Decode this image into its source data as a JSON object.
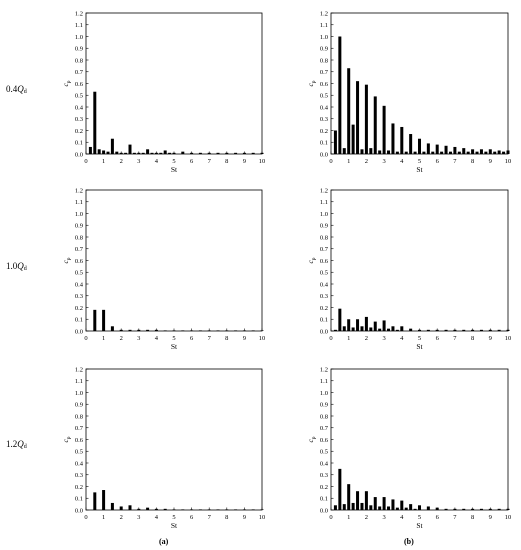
{
  "figure": {
    "rows": [
      {
        "prefix": "0.4",
        "q": "Q",
        "sub": "d"
      },
      {
        "prefix": "1.0",
        "q": "Q",
        "sub": "d"
      },
      {
        "prefix": "1.2",
        "q": "Q",
        "sub": "d"
      }
    ],
    "columns": [
      "(a)",
      "(b)"
    ]
  },
  "chart_data": [
    {
      "type": "bar",
      "panel": "0.4Qd (a)",
      "xlabel": "St",
      "ylabel": "c_p",
      "xlim": [
        0,
        10
      ],
      "ylim": [
        0,
        1.2
      ],
      "xticks": [
        "0",
        "1",
        "2",
        "3",
        "4",
        "5",
        "6",
        "7",
        "8",
        "9",
        "10"
      ],
      "yticks": [
        "0.0",
        "0.1",
        "0.2",
        "0.3",
        "0.4",
        "0.5",
        "0.6",
        "0.7",
        "0.8",
        "0.9",
        "1.0",
        "1.1",
        "1.2"
      ],
      "x": [
        0.25,
        0.5,
        0.75,
        1.0,
        1.25,
        1.5,
        1.75,
        2.0,
        2.25,
        2.5,
        2.75,
        3.0,
        3.25,
        3.5,
        3.75,
        4.0,
        4.25,
        4.5,
        4.75,
        5.0,
        5.5,
        6.0,
        6.5,
        7.0,
        7.5,
        8.0,
        8.5,
        9.0,
        9.5,
        10.0
      ],
      "values": [
        0.06,
        0.53,
        0.04,
        0.03,
        0.02,
        0.13,
        0.02,
        0.01,
        0.01,
        0.08,
        0.01,
        0.01,
        0.01,
        0.04,
        0.01,
        0.01,
        0.01,
        0.03,
        0.01,
        0.01,
        0.02,
        0.01,
        0.01,
        0.01,
        0.01,
        0.01,
        0.01,
        0.01,
        0.01,
        0.01
      ]
    },
    {
      "type": "bar",
      "panel": "0.4Qd (b)",
      "xlabel": "St",
      "ylabel": "c_p",
      "xlim": [
        0,
        10
      ],
      "ylim": [
        0,
        1.2
      ],
      "xticks": [
        "0",
        "1",
        "2",
        "3",
        "4",
        "5",
        "6",
        "7",
        "8",
        "9",
        "10"
      ],
      "yticks": [
        "0.0",
        "0.1",
        "0.2",
        "0.3",
        "0.4",
        "0.5",
        "0.6",
        "0.7",
        "0.8",
        "0.9",
        "1.0",
        "1.1",
        "1.2"
      ],
      "x": [
        0.25,
        0.5,
        0.75,
        1.0,
        1.25,
        1.5,
        1.75,
        2.0,
        2.25,
        2.5,
        2.75,
        3.0,
        3.25,
        3.5,
        3.75,
        4.0,
        4.25,
        4.5,
        4.75,
        5.0,
        5.25,
        5.5,
        5.75,
        6.0,
        6.25,
        6.5,
        6.75,
        7.0,
        7.25,
        7.5,
        7.75,
        8.0,
        8.25,
        8.5,
        8.75,
        9.0,
        9.25,
        9.5,
        9.75,
        10.0
      ],
      "values": [
        0.2,
        1.0,
        0.05,
        0.73,
        0.25,
        0.62,
        0.04,
        0.59,
        0.05,
        0.49,
        0.03,
        0.41,
        0.03,
        0.26,
        0.02,
        0.23,
        0.02,
        0.17,
        0.02,
        0.13,
        0.02,
        0.09,
        0.02,
        0.08,
        0.02,
        0.07,
        0.02,
        0.06,
        0.02,
        0.05,
        0.02,
        0.04,
        0.02,
        0.04,
        0.02,
        0.04,
        0.02,
        0.03,
        0.02,
        0.03
      ]
    },
    {
      "type": "bar",
      "panel": "1.0Qd (a)",
      "xlabel": "St",
      "ylabel": "c_p",
      "xlim": [
        0,
        10
      ],
      "ylim": [
        0,
        1.2
      ],
      "xticks": [
        "0",
        "1",
        "2",
        "3",
        "4",
        "5",
        "6",
        "7",
        "8",
        "9",
        "10"
      ],
      "yticks": [
        "0.0",
        "0.1",
        "0.2",
        "0.3",
        "0.4",
        "0.5",
        "0.6",
        "0.7",
        "0.8",
        "0.9",
        "1.0",
        "1.1",
        "1.2"
      ],
      "x": [
        0.5,
        1.0,
        1.5,
        2.0,
        2.5,
        3.0,
        3.5,
        4.0,
        4.5,
        5.0,
        5.5,
        6.0,
        6.5,
        7.0,
        7.5,
        8.0,
        8.5,
        9.0,
        9.5,
        10.0
      ],
      "values": [
        0.18,
        0.18,
        0.04,
        0.01,
        0.01,
        0.01,
        0.01,
        0.01,
        0.005,
        0.005,
        0.005,
        0.005,
        0.005,
        0.005,
        0.005,
        0.005,
        0.005,
        0.005,
        0.005,
        0.005
      ]
    },
    {
      "type": "bar",
      "panel": "1.0Qd (b)",
      "xlabel": "St",
      "ylabel": "c_p",
      "xlim": [
        0,
        10
      ],
      "ylim": [
        0,
        1.2
      ],
      "xticks": [
        "0",
        "1",
        "2",
        "3",
        "4",
        "5",
        "6",
        "7",
        "8",
        "9",
        "10"
      ],
      "yticks": [
        "0.0",
        "0.1",
        "0.2",
        "0.3",
        "0.4",
        "0.5",
        "0.6",
        "0.7",
        "0.8",
        "0.9",
        "1.0",
        "1.1",
        "1.2"
      ],
      "x": [
        0.25,
        0.5,
        0.75,
        1.0,
        1.25,
        1.5,
        1.75,
        2.0,
        2.25,
        2.5,
        2.75,
        3.0,
        3.25,
        3.5,
        3.75,
        4.0,
        4.5,
        5.0,
        5.5,
        6.0,
        6.5,
        7.0,
        7.5,
        8.0,
        8.5,
        9.0,
        9.5,
        10.0
      ],
      "values": [
        0.01,
        0.19,
        0.04,
        0.1,
        0.03,
        0.1,
        0.04,
        0.12,
        0.03,
        0.08,
        0.02,
        0.09,
        0.02,
        0.04,
        0.01,
        0.04,
        0.02,
        0.01,
        0.01,
        0.01,
        0.01,
        0.01,
        0.01,
        0.01,
        0.01,
        0.01,
        0.01,
        0.01
      ]
    },
    {
      "type": "bar",
      "panel": "1.2Qd (a)",
      "xlabel": "St",
      "ylabel": "c_p",
      "xlim": [
        0,
        10
      ],
      "ylim": [
        0,
        1.2
      ],
      "xticks": [
        "0",
        "1",
        "2",
        "3",
        "4",
        "5",
        "6",
        "7",
        "8",
        "9",
        "10"
      ],
      "yticks": [
        "0.0",
        "0.1",
        "0.2",
        "0.3",
        "0.4",
        "0.5",
        "0.6",
        "0.7",
        "0.8",
        "0.9",
        "1.0",
        "1.1",
        "1.2"
      ],
      "x": [
        0.5,
        1.0,
        1.5,
        2.0,
        2.5,
        3.0,
        3.5,
        4.0,
        4.5,
        5.0,
        5.5,
        6.0,
        6.5,
        7.0,
        7.5,
        8.0,
        8.5,
        9.0,
        9.5,
        10.0
      ],
      "values": [
        0.15,
        0.17,
        0.06,
        0.03,
        0.04,
        0.01,
        0.02,
        0.01,
        0.01,
        0.005,
        0.005,
        0.005,
        0.005,
        0.005,
        0.005,
        0.005,
        0.005,
        0.005,
        0.005,
        0.005
      ]
    },
    {
      "type": "bar",
      "panel": "1.2Qd (b)",
      "xlabel": "St",
      "ylabel": "c_p",
      "xlim": [
        0,
        10
      ],
      "ylim": [
        0,
        1.2
      ],
      "xticks": [
        "0",
        "1",
        "2",
        "3",
        "4",
        "5",
        "6",
        "7",
        "8",
        "9",
        "10"
      ],
      "yticks": [
        "0.0",
        "0.1",
        "0.2",
        "0.3",
        "0.4",
        "0.5",
        "0.6",
        "0.7",
        "0.8",
        "0.9",
        "1.0",
        "1.1",
        "1.2"
      ],
      "x": [
        0.25,
        0.5,
        0.75,
        1.0,
        1.25,
        1.5,
        1.75,
        2.0,
        2.25,
        2.5,
        2.75,
        3.0,
        3.25,
        3.5,
        3.75,
        4.0,
        4.25,
        4.5,
        4.75,
        5.0,
        5.5,
        6.0,
        6.5,
        7.0,
        7.5,
        8.0,
        8.5,
        9.0,
        9.5,
        10.0
      ],
      "values": [
        0.04,
        0.35,
        0.05,
        0.22,
        0.06,
        0.16,
        0.06,
        0.16,
        0.04,
        0.11,
        0.03,
        0.11,
        0.03,
        0.09,
        0.02,
        0.08,
        0.02,
        0.05,
        0.01,
        0.04,
        0.03,
        0.02,
        0.01,
        0.01,
        0.01,
        0.01,
        0.01,
        0.01,
        0.01,
        0.01
      ]
    }
  ]
}
